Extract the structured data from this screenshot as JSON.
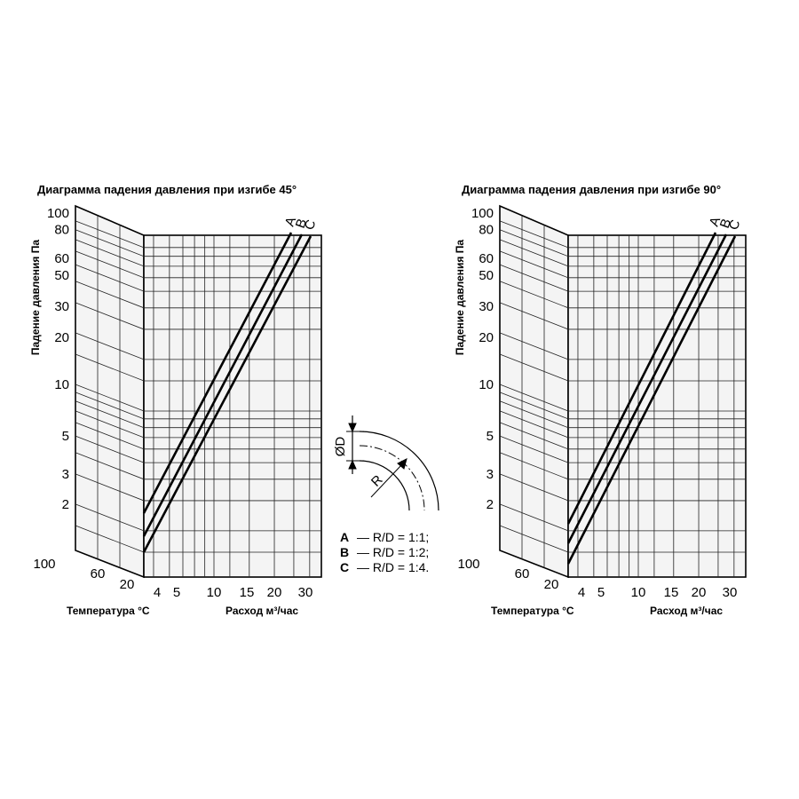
{
  "charts": [
    {
      "title": "Диаграмма падения давления при изгибе 45°",
      "y_label": "Падение давления Па",
      "y_ticks": [
        100,
        80,
        60,
        50,
        30,
        20,
        10,
        5,
        3,
        2
      ],
      "temperature_label": "Температура °C",
      "temperature_ticks": [
        100,
        60,
        20
      ],
      "x_label": "Расход м³/час",
      "x_ticks": [
        4,
        5,
        10,
        15,
        20,
        30
      ],
      "curves": [
        "A",
        "B",
        "C"
      ]
    },
    {
      "title": "Диаграмма падения давления при изгибе 90°",
      "y_label": "Падение давления Па",
      "y_ticks": [
        100,
        80,
        60,
        50,
        30,
        20,
        10,
        5,
        3,
        2
      ],
      "temperature_label": "Температура °C",
      "temperature_ticks": [
        100,
        60,
        20
      ],
      "x_label": "Расход м³/час",
      "x_ticks": [
        4,
        5,
        10,
        15,
        20,
        30
      ],
      "curves": [
        "A",
        "B",
        "C"
      ]
    }
  ],
  "bend": {
    "diameter": "ØD",
    "radius": "R"
  },
  "legend": [
    {
      "key": "A",
      "text": "— R/D = 1:1;"
    },
    {
      "key": "B",
      "text": "— R/D = 1:2;"
    },
    {
      "key": "C",
      "text": "— R/D = 1:4."
    }
  ]
}
